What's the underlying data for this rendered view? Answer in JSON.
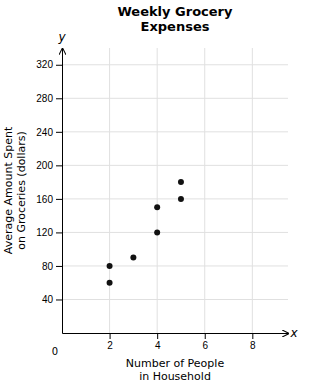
{
  "chart_data": {
    "type": "scatter",
    "title": "Weekly Grocery\nExpenses",
    "xlabel": "Number of People\nin Household",
    "ylabel": "Average Amount Spent\non Groceries (dollars)",
    "x": [
      2,
      2,
      3,
      4,
      4,
      5,
      5
    ],
    "values": [
      60,
      80,
      90,
      120,
      150,
      160,
      180
    ],
    "color": "#111111",
    "xlim": [
      0,
      9.5
    ],
    "ylim": [
      0,
      340
    ],
    "xticks": [
      2,
      4,
      6,
      8
    ],
    "yticks": [
      40,
      80,
      120,
      160,
      200,
      240,
      280,
      320
    ],
    "grid": true,
    "annotations": [
      {
        "text": "x",
        "x": 9.6,
        "y": 0
      },
      {
        "text": "y",
        "x": 0,
        "y": 348
      },
      {
        "text": "0",
        "x": -0.3,
        "y": -18
      }
    ]
  }
}
